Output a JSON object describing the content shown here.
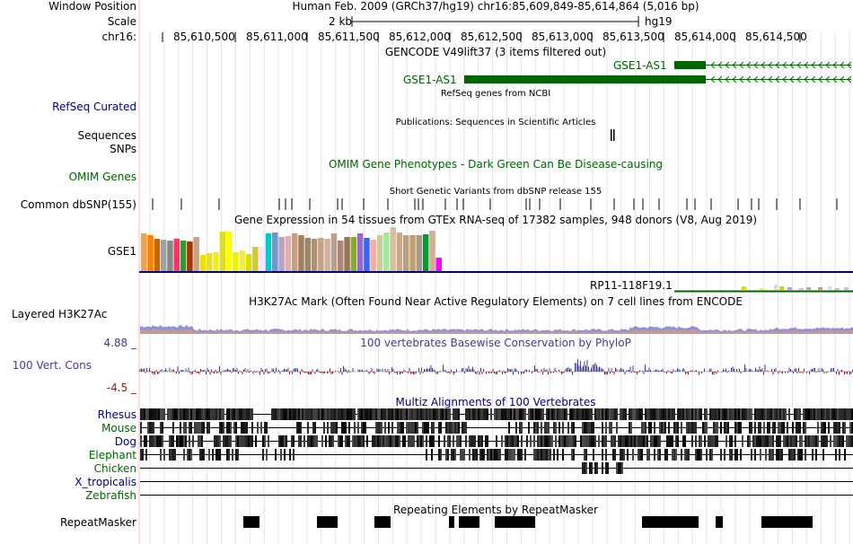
{
  "header": {
    "window_position_label": "Window Position",
    "scale_label": "Scale",
    "chrom_label": "chr16:",
    "position_text": "Human Feb. 2009 (GRCh37/hg19)   chr16:85,609,849-85,614,864 (5,016 bp)",
    "scale_text": "2 kb",
    "assembly_text": "hg19",
    "ruler_ticks": [
      "85,610,500",
      "85,611,000",
      "85,611,500",
      "85,612,000",
      "85,612,500",
      "85,613,000",
      "85,613,500",
      "85,614,000",
      "85,614,500"
    ]
  },
  "tracks": {
    "gencode": {
      "title": "GENCODE V49lift37 (3 items filtered out)",
      "gene1": "GSE1-AS1",
      "gene2": "GSE1-AS1"
    },
    "refseq": {
      "side_label": "RefSeq Curated",
      "title": "RefSeq genes from NCBI"
    },
    "publications": {
      "title": "Publications: Sequences in Scientific Articles",
      "side1": "Sequences",
      "side2": "SNPs"
    },
    "omim": {
      "side_label": "OMIM Genes",
      "title": "OMIM Gene Phenotypes - Dark Green Can Be Disease-causing"
    },
    "dbsnp": {
      "side_label": "Common dbSNP(155)",
      "title": "Short Genetic Variants from dbSNP release 155"
    },
    "gtex": {
      "side_label": "GSE1",
      "title": "Gene Expression in 54 tissues from GTEx RNA-seq of 17382 samples, 948 donors (V8, Aug 2019)",
      "gene2": "RP11-118F19.1"
    },
    "h3k27ac": {
      "side_label": "Layered H3K27Ac",
      "title": "H3K27Ac Mark (Often Found Near Active Regulatory Elements) on 7 cell lines from ENCODE"
    },
    "phylop": {
      "side_label": "100 Vert. Cons",
      "max_label": "4.88 _",
      "min_label": "-4.5 _",
      "title": "100 vertebrates Basewise Conservation by PhyloP"
    },
    "multiz": {
      "title": "Multiz Alignments of 100 Vertebrates",
      "species": [
        "Rhesus",
        "Mouse",
        "Dog",
        "Elephant",
        "Chicken",
        "X_tropicalis",
        "Zebrafish"
      ]
    },
    "repeatmasker": {
      "side_label": "RepeatMasker",
      "title": "Repeating Elements by RepeatMasker"
    }
  },
  "colors": {
    "blue_label": "#000080",
    "green_label": "#006400",
    "gencode_green": "#006400",
    "phylop_text": "#3e3e8f",
    "multiz_text": "#000080"
  }
}
